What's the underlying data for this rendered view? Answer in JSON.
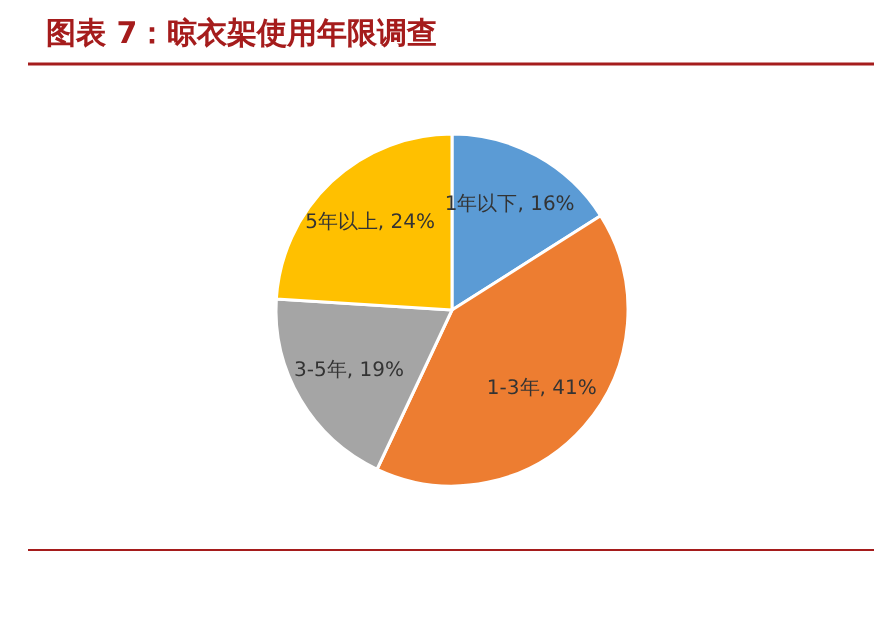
{
  "chart_data": {
    "type": "pie",
    "title": "图表 7：晾衣架使用年限调查",
    "categories": [
      "1年以下",
      "1-3年",
      "3-5年",
      "5年以上"
    ],
    "values": [
      16,
      41,
      19,
      24
    ],
    "value_labels": [
      "16%",
      "41%",
      "19%",
      "24%"
    ],
    "colors": [
      "#5b9bd5",
      "#ed7d31",
      "#a5a5a5",
      "#ffc000"
    ],
    "legend": false
  }
}
